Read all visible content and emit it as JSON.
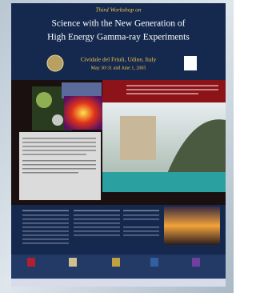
{
  "header": {
    "subtitle": "Third Workshop on",
    "title_line1": "Science with the New Generation of",
    "title_line2": "High Energy Gamma-ray Experiments",
    "location": "Cividale del Friuli, Udine, Italy",
    "dates": "May 30-31 and June 1, 2005"
  }
}
